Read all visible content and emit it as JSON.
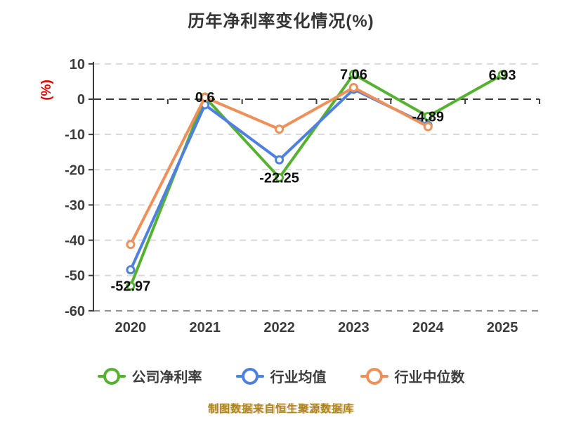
{
  "title": "历年净利率变化情况(%)",
  "footer": {
    "text": "制图数据来自恒生聚源数据库"
  },
  "chart_data": {
    "type": "line",
    "title": "历年净利率变化情况(%)",
    "y_unit": "(%)",
    "categories": [
      "2020",
      "2021",
      "2022",
      "2023",
      "2024",
      "2025"
    ],
    "yticks": [
      10,
      0,
      -10,
      -20,
      -30,
      -40,
      -50,
      -60
    ],
    "ylim": [
      -60,
      10
    ],
    "grid": "horizontal-dashed",
    "legend_position": "bottom",
    "series": [
      {
        "name": "公司净利率",
        "color": "#55b231",
        "values": [
          -52.97,
          0.6,
          -22.25,
          7.06,
          -4.89,
          6.93
        ],
        "labels": [
          "-52.97",
          "0.6",
          "-22.25",
          "7.06",
          "-4.89",
          "6.93"
        ]
      },
      {
        "name": "行业均值",
        "color": "#4e80e2",
        "values": [
          -48.4,
          -1.6,
          -17.2,
          2.8,
          -7.4,
          null
        ],
        "labels": []
      },
      {
        "name": "行业中位数",
        "color": "#f09059",
        "values": [
          -41.2,
          0.5,
          -8.5,
          3.3,
          -7.8,
          null
        ],
        "labels": []
      }
    ],
    "colors": {
      "grid": "#d9d9d9",
      "bottom_grid": "#8f8f8f",
      "axis": "#3c3c3c",
      "label": "#0f0f0f",
      "y_unit": "#e60000"
    }
  }
}
